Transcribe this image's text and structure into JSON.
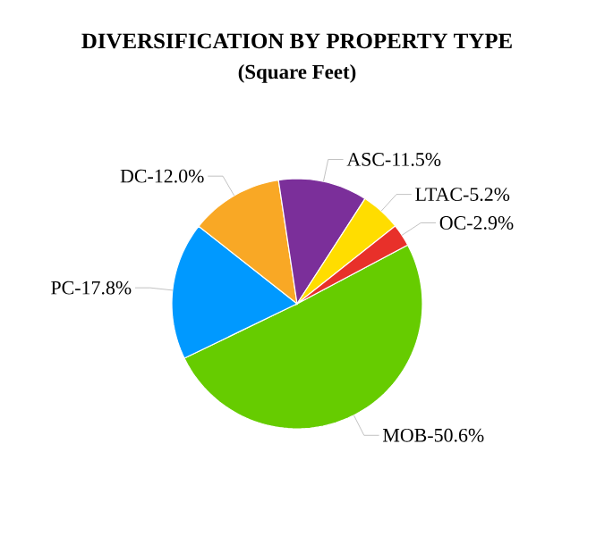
{
  "chart_data": {
    "type": "pie",
    "title": "DIVERSIFICATION BY PROPERTY TYPE",
    "subtitle": "(Square Feet)",
    "categories": [
      "MOB-50.6%",
      "PC-17.8%",
      "DC-12.0%",
      "ASC-11.5%",
      "LTAC-5.2%",
      "OC-2.9%"
    ],
    "values": [
      50.6,
      17.8,
      12.0,
      11.5,
      5.2,
      2.9
    ],
    "colors": [
      "#66cc00",
      "#0099ff",
      "#f9a825",
      "#7b2f9a",
      "#ffdd00",
      "#e8302a"
    ]
  }
}
